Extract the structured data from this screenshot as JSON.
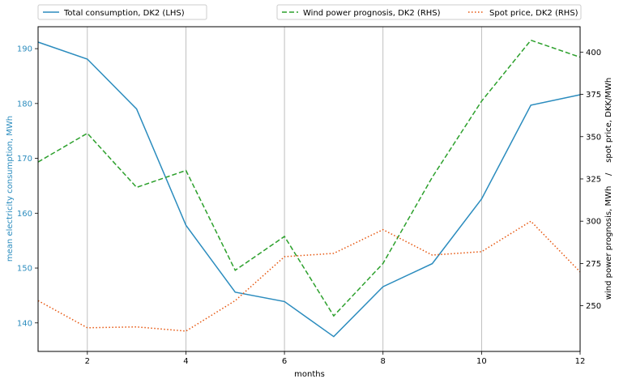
{
  "chart_data": {
    "type": "line",
    "x": [
      1,
      2,
      3,
      4,
      5,
      6,
      7,
      8,
      9,
      10,
      11,
      12
    ],
    "xlabel": "months",
    "xlim": [
      1,
      12
    ],
    "xticks": [
      2,
      4,
      6,
      8,
      10,
      12
    ],
    "grid": "vertical",
    "left_axis": {
      "label": "mean electricity consumption, MWh",
      "ylim": [
        134.8,
        194
      ],
      "ticks": [
        140,
        150,
        160,
        170,
        180,
        190
      ],
      "color": "#2b8cbe"
    },
    "right_axis": {
      "label": "wind power prognosis, MWh    /    spot price, DKK/MWh",
      "ylim": [
        223,
        415
      ],
      "ticks": [
        250,
        275,
        300,
        325,
        350,
        375,
        400
      ]
    },
    "series": [
      {
        "name": "Total consumption, DK2 (LHS)",
        "axis": "left",
        "color": "#2b8cbe",
        "style": "solid",
        "values": [
          191.2,
          188.1,
          179.0,
          157.8,
          145.6,
          143.9,
          137.5,
          146.6,
          150.8,
          162.6,
          179.7,
          181.6
        ]
      },
      {
        "name": "Wind power prognosis, DK2 (RHS)",
        "axis": "right",
        "color": "#2ca02c",
        "style": "dashed",
        "values": [
          335,
          352,
          320,
          330,
          271,
          291,
          244,
          275,
          326,
          371,
          407,
          397
        ]
      },
      {
        "name": "Spot price, DK2 (RHS)",
        "axis": "right",
        "color": "#e6550d",
        "style": "dotted",
        "values": [
          253,
          237,
          237.5,
          235,
          253,
          279,
          281,
          295,
          280,
          282,
          300,
          270
        ]
      }
    ],
    "legend": "top, above plot"
  }
}
